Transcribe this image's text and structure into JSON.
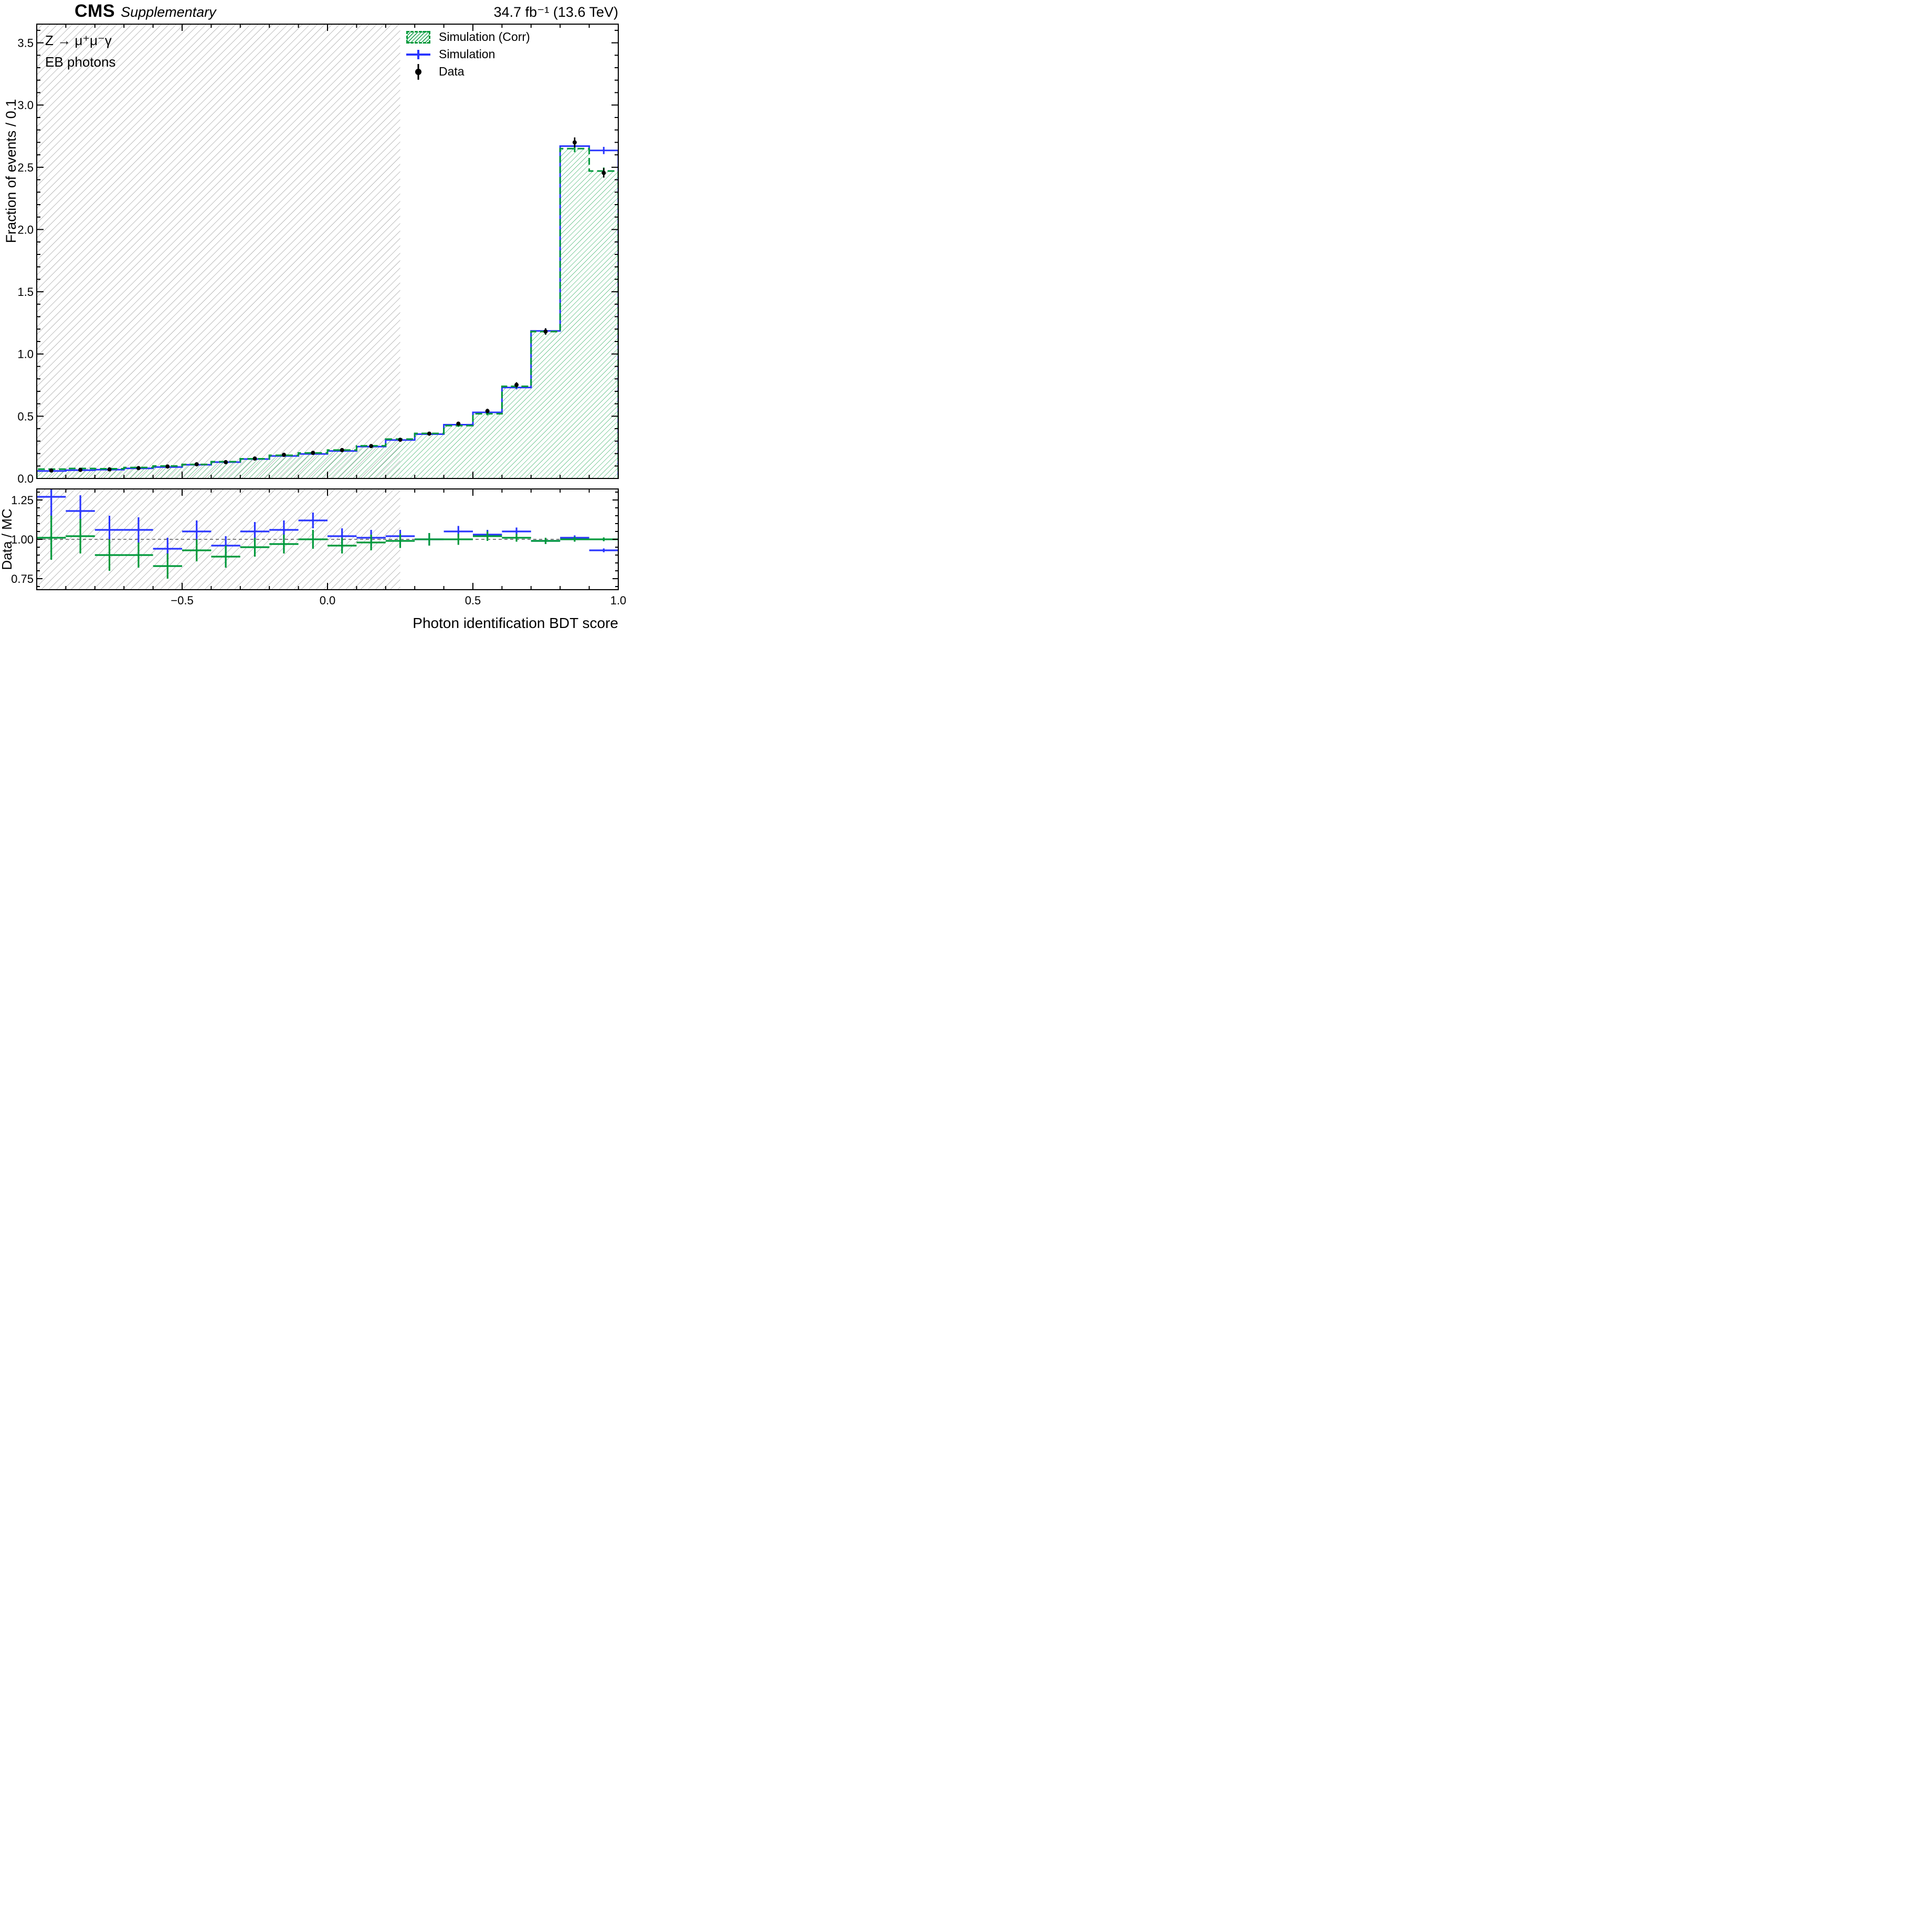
{
  "header": {
    "experiment": "CMS",
    "label": "Supplementary",
    "lumi": "34.7 fb⁻¹ (13.6 TeV)"
  },
  "annotations": {
    "process": "Z → μ⁺μ⁻γ",
    "detector": "EB photons"
  },
  "legend": {
    "sim_corr": "Simulation (Corr)",
    "sim": "Simulation",
    "data": "Data"
  },
  "axes": {
    "y_main_label": "Fraction of events / 0.1",
    "y_ratio_label": "Data / MC",
    "x_label": "Photon identification BDT score",
    "y_main_ticks": [
      "0.0",
      "0.5",
      "1.0",
      "1.5",
      "2.0",
      "2.5",
      "3.0",
      "3.5"
    ],
    "y_ratio_ticks": [
      "0.75",
      "1.00",
      "1.25"
    ],
    "x_ticks": [
      "−0.5",
      "0.0",
      "0.5",
      "1.0"
    ]
  },
  "colors": {
    "sim": "#2a36ff",
    "sim_corr": "#00993b",
    "data": "#000000",
    "hatch": "#8f8f8f",
    "frame": "#000000"
  },
  "chart_data": [
    {
      "type": "bar",
      "subtype": "step-histogram",
      "title": "",
      "xlabel": "Photon identification BDT score",
      "ylabel": "Fraction of events / 0.1",
      "xlim": [
        -1.0,
        1.0
      ],
      "ylim": [
        0,
        3.65
      ],
      "bin_width": 0.1,
      "legend_position": "top-right",
      "grid": false,
      "excluded_region": {
        "x_min": -1.0,
        "x_max": 0.25,
        "style": "gray-hatched"
      },
      "bin_centers": [
        -0.95,
        -0.85,
        -0.75,
        -0.65,
        -0.55,
        -0.45,
        -0.35,
        -0.25,
        -0.15,
        -0.05,
        0.05,
        0.15,
        0.25,
        0.35,
        0.45,
        0.55,
        0.65,
        0.75,
        0.85,
        0.95
      ],
      "series": [
        {
          "name": "Simulation (Corr)",
          "style": "green-dashed-hatched",
          "values": [
            0.075,
            0.08,
            0.078,
            0.088,
            0.1,
            0.113,
            0.135,
            0.158,
            0.186,
            0.205,
            0.228,
            0.262,
            0.316,
            0.362,
            0.425,
            0.52,
            0.74,
            1.18,
            2.65,
            2.47
          ],
          "errors": [
            0.005,
            0.005,
            0.005,
            0.006,
            0.006,
            0.006,
            0.007,
            0.007,
            0.007,
            0.008,
            0.008,
            0.009,
            0.009,
            0.01,
            0.011,
            0.013,
            0.015,
            0.019,
            0.029,
            0.028
          ]
        },
        {
          "name": "Simulation",
          "style": "blue-solid",
          "values": [
            0.06,
            0.066,
            0.071,
            0.081,
            0.092,
            0.11,
            0.131,
            0.156,
            0.181,
            0.197,
            0.221,
            0.256,
            0.309,
            0.356,
            0.432,
            0.531,
            0.731,
            1.185,
            2.67,
            2.635
          ],
          "errors": [
            0.005,
            0.005,
            0.005,
            0.006,
            0.006,
            0.006,
            0.007,
            0.007,
            0.007,
            0.008,
            0.008,
            0.009,
            0.009,
            0.01,
            0.011,
            0.013,
            0.015,
            0.019,
            0.029,
            0.029
          ]
        },
        {
          "name": "Data",
          "style": "black-points",
          "values": [
            0.064,
            0.069,
            0.073,
            0.083,
            0.096,
            0.114,
            0.131,
            0.16,
            0.19,
            0.206,
            0.228,
            0.26,
            0.311,
            0.36,
            0.44,
            0.542,
            0.752,
            1.181,
            2.7,
            2.455
          ],
          "errors": [
            0.008,
            0.008,
            0.008,
            0.009,
            0.009,
            0.01,
            0.01,
            0.011,
            0.012,
            0.012,
            0.013,
            0.013,
            0.014,
            0.015,
            0.016,
            0.018,
            0.021,
            0.026,
            0.04,
            0.038
          ]
        }
      ]
    },
    {
      "type": "scatter",
      "subtype": "ratio",
      "ylabel": "Data / MC",
      "xlim": [
        -1.0,
        1.0
      ],
      "ylim": [
        0.68,
        1.32
      ],
      "yticks": [
        0.75,
        1.0,
        1.25
      ],
      "reference_line": 1.0,
      "x_half_width": 0.05,
      "series": [
        {
          "name": "Data / Simulation",
          "color_key": "sim",
          "values": [
            1.27,
            1.18,
            1.06,
            1.06,
            0.94,
            1.05,
            0.96,
            1.05,
            1.06,
            1.12,
            1.02,
            1.01,
            1.02,
            1.0,
            1.05,
            1.03,
            1.05,
            0.99,
            1.01,
            0.93
          ],
          "errors": [
            0.14,
            0.1,
            0.09,
            0.08,
            0.07,
            0.07,
            0.06,
            0.06,
            0.06,
            0.05,
            0.05,
            0.05,
            0.04,
            0.04,
            0.035,
            0.03,
            0.025,
            0.02,
            0.015,
            0.012
          ]
        },
        {
          "name": "Data / Simulation (Corr)",
          "color_key": "sim_corr",
          "values": [
            1.01,
            1.02,
            0.9,
            0.9,
            0.83,
            0.93,
            0.89,
            0.95,
            0.97,
            1.0,
            0.96,
            0.98,
            0.99,
            1.0,
            1.0,
            1.02,
            1.01,
            0.99,
            1.0,
            1.0
          ],
          "errors": [
            0.14,
            0.11,
            0.1,
            0.08,
            0.08,
            0.07,
            0.07,
            0.06,
            0.06,
            0.06,
            0.05,
            0.05,
            0.045,
            0.04,
            0.035,
            0.03,
            0.025,
            0.02,
            0.015,
            0.012
          ]
        }
      ]
    }
  ]
}
